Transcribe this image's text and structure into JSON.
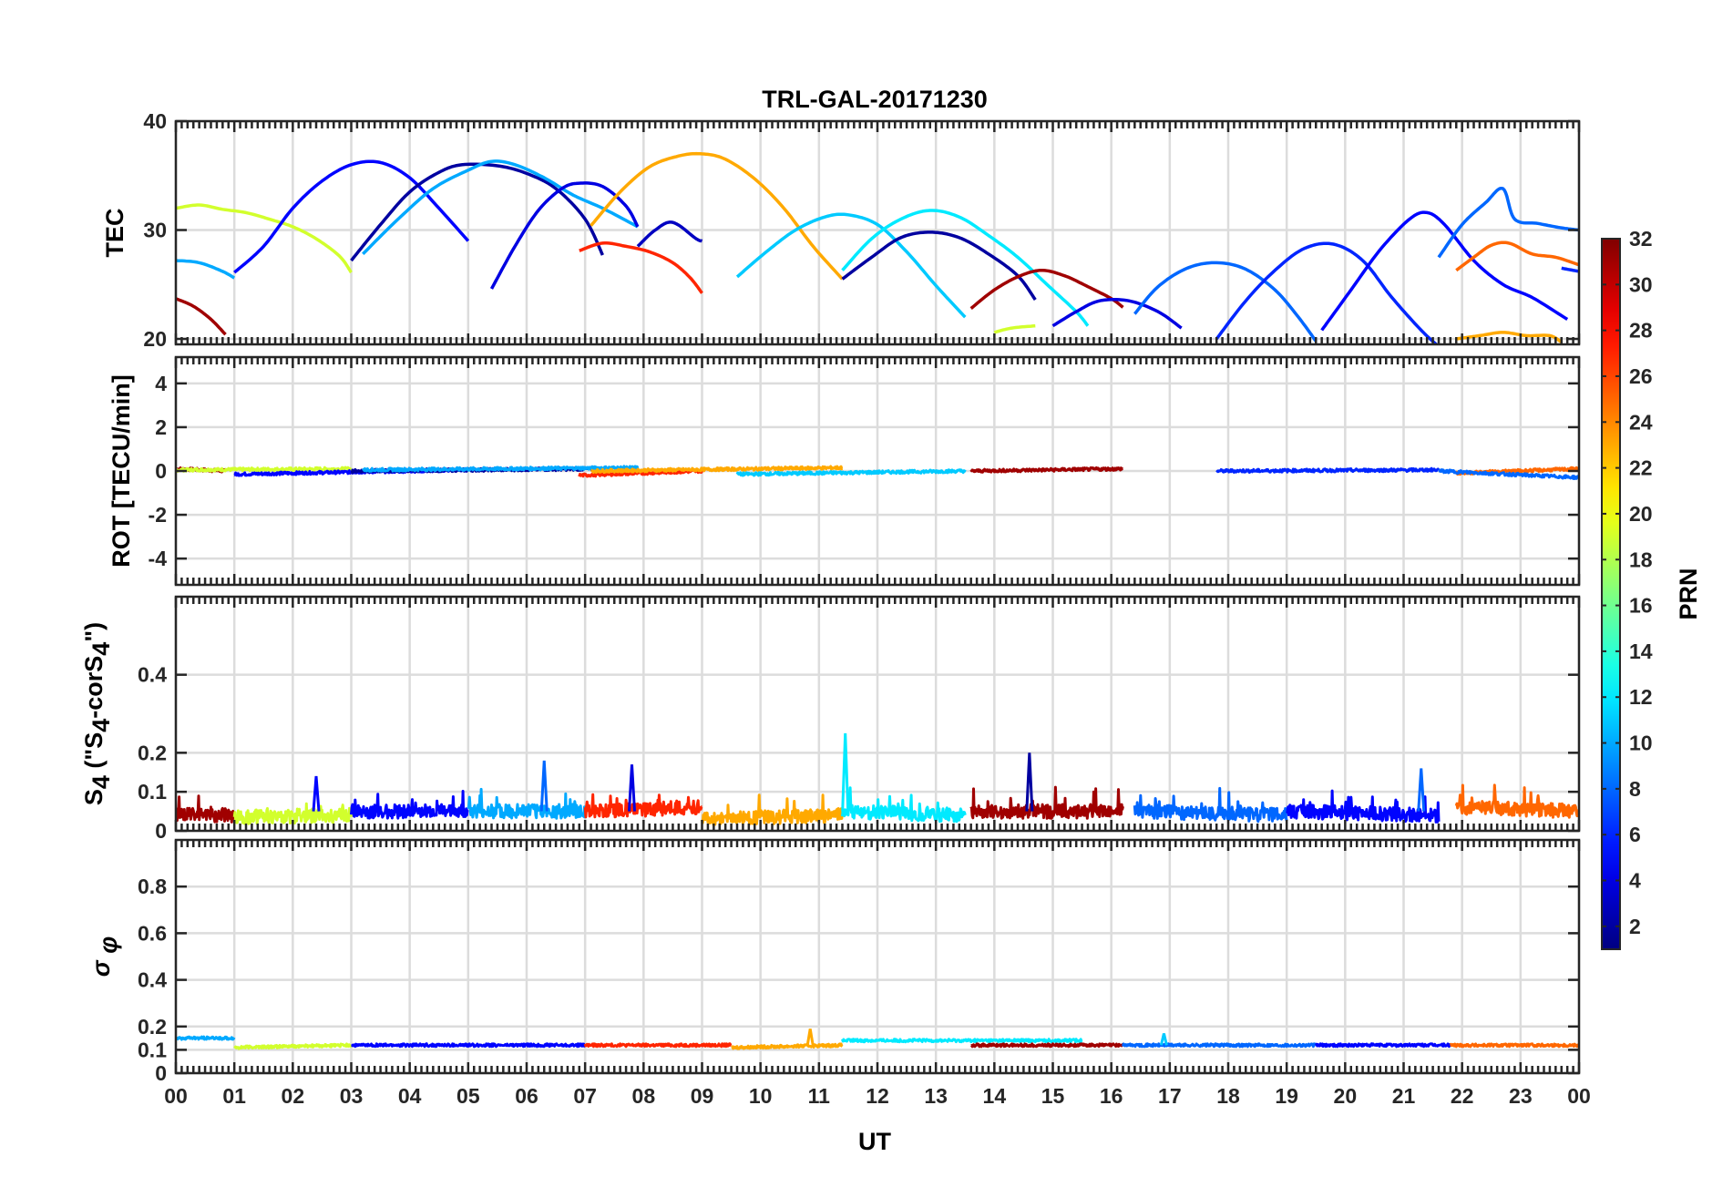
{
  "chart_data": {
    "type": "line",
    "title": "TRL-GAL-20171230",
    "xlabel": "UT",
    "x_ticks": [
      "00",
      "01",
      "02",
      "03",
      "04",
      "05",
      "06",
      "07",
      "08",
      "09",
      "10",
      "11",
      "12",
      "13",
      "14",
      "15",
      "16",
      "17",
      "18",
      "19",
      "20",
      "21",
      "22",
      "23",
      "00"
    ],
    "xlim": [
      0,
      24
    ],
    "grid": true,
    "colorbar": {
      "label": "PRN",
      "range": [
        1,
        32
      ],
      "ticks": [
        "2",
        "4",
        "6",
        "8",
        "10",
        "12",
        "14",
        "16",
        "18",
        "20",
        "22",
        "24",
        "26",
        "28",
        "30",
        "32"
      ],
      "colormap": "jet"
    },
    "panels": [
      {
        "ylabel": "TEC",
        "ylim": [
          19.5,
          40
        ],
        "yticks": [
          20,
          30,
          40
        ],
        "series": [
          {
            "prn": 31,
            "x": [
              0,
              0.3,
              0.6,
              0.85
            ],
            "y": [
              23.7,
              23.0,
              21.8,
              20.4
            ]
          },
          {
            "prn": 10,
            "x": [
              0,
              0.4,
              0.8,
              1.0
            ],
            "y": [
              27.2,
              27.0,
              26.2,
              25.6
            ]
          },
          {
            "prn": 19,
            "x": [
              0,
              0.4,
              0.8,
              1.2,
              1.6,
              2.0,
              2.4,
              2.8,
              3.0
            ],
            "y": [
              32.0,
              32.3,
              31.9,
              31.6,
              31.0,
              30.3,
              29.2,
              27.6,
              26.1
            ]
          },
          {
            "prn": 5,
            "x": [
              1.0,
              1.5,
              2.0,
              2.5,
              3.0,
              3.5,
              4.0,
              4.5,
              5.0
            ],
            "y": [
              26.1,
              28.5,
              32.0,
              34.5,
              36.0,
              36.2,
              34.8,
              32.0,
              29.0
            ]
          },
          {
            "prn": 2,
            "x": [
              3.0,
              3.5,
              4.0,
              4.5,
              4.9,
              5.5,
              6.0,
              6.5,
              7.0,
              7.3
            ],
            "y": [
              27.2,
              30.5,
              33.5,
              35.3,
              36.0,
              35.9,
              35.2,
              33.8,
              31.0,
              27.7
            ]
          },
          {
            "prn": 10,
            "x": [
              3.2,
              3.8,
              4.4,
              5.0,
              5.4,
              5.8,
              6.3,
              6.8,
              7.3,
              7.9
            ],
            "y": [
              27.8,
              31.0,
              33.8,
              35.5,
              36.3,
              36.0,
              34.8,
              33.2,
              32.0,
              30.3
            ]
          },
          {
            "prn": 4,
            "x": [
              5.4,
              5.8,
              6.2,
              6.6,
              6.9,
              7.3,
              7.7,
              7.9
            ],
            "y": [
              24.6,
              28.5,
              31.8,
              33.8,
              34.3,
              34.0,
              32.2,
              30.3
            ]
          },
          {
            "prn": 27,
            "x": [
              6.9,
              7.3,
              7.7,
              8.1,
              8.5,
              8.8,
              9.0
            ],
            "y": [
              28.1,
              28.8,
              28.5,
              28.0,
              27.0,
              25.6,
              24.2
            ]
          },
          {
            "prn": 23,
            "x": [
              7.1,
              7.6,
              8.1,
              8.6,
              9.0,
              9.4,
              9.9,
              10.4,
              10.9,
              11.4
            ],
            "y": [
              30.4,
              33.5,
              35.8,
              36.8,
              37.0,
              36.5,
              34.7,
              32.0,
              28.5,
              25.5
            ]
          },
          {
            "prn": 3,
            "x": [
              7.9,
              8.2,
              8.5,
              8.9,
              9.0
            ],
            "y": [
              28.5,
              30.0,
              30.7,
              29.2,
              29.0
            ]
          },
          {
            "prn": 11,
            "x": [
              9.6,
              10.1,
              10.6,
              11.1,
              11.5,
              12.0,
              12.5,
              13.0,
              13.5
            ],
            "y": [
              25.7,
              28.0,
              30.0,
              31.2,
              31.4,
              30.5,
              28.0,
              24.9,
              22.0
            ]
          },
          {
            "prn": 12,
            "x": [
              11.4,
              11.9,
              12.4,
              12.9,
              13.4,
              13.9,
              14.4,
              14.9,
              15.4,
              15.6
            ],
            "y": [
              26.3,
              29.2,
              31.0,
              31.8,
              31.2,
              29.5,
              27.5,
              25.0,
              22.5,
              21.2
            ]
          },
          {
            "prn": 2,
            "x": [
              11.4,
              11.9,
              12.4,
              12.9,
              13.4,
              13.9,
              14.4,
              14.7
            ],
            "y": [
              25.5,
              27.5,
              29.3,
              29.8,
              29.3,
              27.8,
              25.8,
              23.6
            ]
          },
          {
            "prn": 31,
            "x": [
              13.6,
              14.0,
              14.4,
              14.8,
              15.2,
              15.6,
              16.0,
              16.2
            ],
            "y": [
              22.8,
              24.5,
              25.7,
              26.3,
              25.8,
              24.8,
              23.7,
              22.9
            ]
          },
          {
            "prn": 19,
            "x": [
              14.0,
              14.3,
              14.7
            ],
            "y": [
              20.6,
              21.0,
              21.2
            ]
          },
          {
            "prn": 4,
            "x": [
              15.0,
              15.4,
              15.8,
              16.3,
              16.8,
              17.2
            ],
            "y": [
              21.2,
              22.5,
              23.5,
              23.5,
              22.5,
              21.0
            ]
          },
          {
            "prn": 8,
            "x": [
              16.4,
              16.8,
              17.3,
              17.8,
              18.3,
              18.8,
              19.2,
              19.5
            ],
            "y": [
              22.3,
              24.8,
              26.5,
              27.0,
              26.4,
              24.5,
              22.0,
              19.8
            ]
          },
          {
            "prn": 6,
            "x": [
              17.8,
              18.3,
              18.8,
              19.3,
              19.8,
              20.3,
              20.8,
              21.3,
              21.6
            ],
            "y": [
              20.0,
              23.5,
              26.3,
              28.3,
              28.7,
              27.2,
              23.8,
              20.8,
              19.3
            ]
          },
          {
            "prn": 5,
            "x": [
              19.6,
              20.1,
              20.6,
              21.1,
              21.4,
              21.7,
              22.2,
              22.7,
              23.2,
              23.8
            ],
            "y": [
              20.8,
              24.5,
              28.2,
              31.0,
              31.6,
              30.5,
              27.2,
              25.0,
              23.8,
              21.8
            ]
          },
          {
            "prn": 8,
            "x": [
              21.6,
              22.0,
              22.4,
              22.7,
              22.9,
              23.3,
              23.7,
              24.0
            ],
            "y": [
              27.5,
              30.5,
              32.5,
              33.8,
              31.0,
              30.6,
              30.2,
              30.0
            ]
          },
          {
            "prn": 25,
            "x": [
              21.9,
              22.2,
              22.5,
              22.8,
              23.2,
              23.6,
              24.0
            ],
            "y": [
              26.3,
              27.5,
              28.6,
              28.8,
              27.8,
              27.5,
              26.8
            ]
          },
          {
            "prn": 23,
            "x": [
              21.9,
              22.3,
              22.7,
              23.1,
              23.5,
              23.7
            ],
            "y": [
              20.0,
              20.3,
              20.6,
              20.3,
              20.3,
              19.7
            ]
          },
          {
            "prn": 6,
            "x": [
              23.7,
              24.0
            ],
            "y": [
              26.5,
              26.2
            ]
          }
        ]
      },
      {
        "ylabel": "ROT [TECU/min]",
        "ylim": [
          -5.2,
          5.2
        ],
        "yticks": [
          -4,
          -2,
          0,
          2,
          4
        ],
        "series": [
          {
            "prn": 31,
            "x": [
              0,
              0.85
            ],
            "y": [
              0.1,
              0.0
            ]
          },
          {
            "prn": 19,
            "x": [
              0,
              3.0
            ],
            "y": [
              0.05,
              0.1
            ]
          },
          {
            "prn": 5,
            "x": [
              1.0,
              5.0
            ],
            "y": [
              -0.15,
              0.05
            ]
          },
          {
            "prn": 2,
            "x": [
              3.0,
              7.3
            ],
            "y": [
              0.0,
              0.1
            ]
          },
          {
            "prn": 10,
            "x": [
              3.2,
              7.9
            ],
            "y": [
              0.05,
              0.15
            ]
          },
          {
            "prn": 27,
            "x": [
              6.9,
              9.0
            ],
            "y": [
              -0.2,
              0.0
            ]
          },
          {
            "prn": 23,
            "x": [
              7.1,
              11.4
            ],
            "y": [
              0.0,
              0.15
            ]
          },
          {
            "prn": 11,
            "x": [
              9.6,
              13.5
            ],
            "y": [
              -0.15,
              0.0
            ]
          },
          {
            "prn": 31,
            "x": [
              13.6,
              16.2
            ],
            "y": [
              0.0,
              0.1
            ]
          },
          {
            "prn": 6,
            "x": [
              17.8,
              21.6
            ],
            "y": [
              0.0,
              0.05
            ]
          },
          {
            "prn": 25,
            "x": [
              21.9,
              24.0
            ],
            "y": [
              -0.1,
              0.1
            ]
          },
          {
            "prn": 8,
            "x": [
              21.6,
              24.0
            ],
            "y": [
              0.0,
              -0.3
            ]
          }
        ]
      },
      {
        "ylabel": "S4 (\"S4-corS4\")",
        "ylim": [
          0,
          0.6
        ],
        "yticks": [
          0,
          0.1,
          0.2,
          0.4
        ],
        "series": [
          {
            "prn": 31,
            "x": [
              0,
              1.0
            ],
            "y": [
              0.04,
              0.04
            ]
          },
          {
            "prn": 19,
            "x": [
              1.0,
              3.0
            ],
            "y": [
              0.035,
              0.04
            ]
          },
          {
            "prn": 5,
            "x": [
              3.0,
              5.0
            ],
            "y": [
              0.05,
              0.05
            ]
          },
          {
            "prn": 10,
            "x": [
              5.0,
              7.0
            ],
            "y": [
              0.05,
              0.05
            ]
          },
          {
            "prn": 27,
            "x": [
              7.0,
              9.0
            ],
            "y": [
              0.05,
              0.06
            ]
          },
          {
            "prn": 23,
            "x": [
              9.0,
              11.4
            ],
            "y": [
              0.03,
              0.04
            ]
          },
          {
            "prn": 12,
            "x": [
              11.4,
              13.5
            ],
            "y": [
              0.05,
              0.04
            ]
          },
          {
            "prn": 31,
            "x": [
              13.6,
              16.2
            ],
            "y": [
              0.05,
              0.05
            ]
          },
          {
            "prn": 8,
            "x": [
              16.4,
              19.0
            ],
            "y": [
              0.05,
              0.04
            ]
          },
          {
            "prn": 5,
            "x": [
              19.0,
              21.6
            ],
            "y": [
              0.05,
              0.04
            ]
          },
          {
            "prn": 25,
            "x": [
              21.9,
              24.0
            ],
            "y": [
              0.06,
              0.05
            ]
          }
        ],
        "peaks": [
          {
            "prn": 5,
            "x": 2.4,
            "y": 0.14
          },
          {
            "prn": 8,
            "x": 6.3,
            "y": 0.18
          },
          {
            "prn": 4,
            "x": 7.8,
            "y": 0.17
          },
          {
            "prn": 12,
            "x": 11.45,
            "y": 0.25
          },
          {
            "prn": 2,
            "x": 14.6,
            "y": 0.2
          },
          {
            "prn": 8,
            "x": 21.3,
            "y": 0.16
          }
        ]
      },
      {
        "ylabel": "σφ",
        "ylim": [
          0,
          1.0
        ],
        "yticks": [
          0,
          0.1,
          0.2,
          0.4,
          0.6,
          0.8
        ],
        "series": [
          {
            "prn": 10,
            "x": [
              0,
              1.0
            ],
            "y": [
              0.15,
              0.15
            ]
          },
          {
            "prn": 19,
            "x": [
              1.0,
              3.0
            ],
            "y": [
              0.11,
              0.12
            ]
          },
          {
            "prn": 5,
            "x": [
              3.0,
              7.0
            ],
            "y": [
              0.12,
              0.12
            ]
          },
          {
            "prn": 27,
            "x": [
              7.0,
              9.5
            ],
            "y": [
              0.12,
              0.12
            ]
          },
          {
            "prn": 23,
            "x": [
              9.5,
              11.4
            ],
            "y": [
              0.11,
              0.12
            ]
          },
          {
            "prn": 12,
            "x": [
              11.4,
              15.5
            ],
            "y": [
              0.14,
              0.14
            ]
          },
          {
            "prn": 31,
            "x": [
              13.6,
              16.2
            ],
            "y": [
              0.12,
              0.12
            ]
          },
          {
            "prn": 8,
            "x": [
              16.2,
              19.5
            ],
            "y": [
              0.12,
              0.12
            ]
          },
          {
            "prn": 5,
            "x": [
              19.5,
              21.8
            ],
            "y": [
              0.12,
              0.12
            ]
          },
          {
            "prn": 25,
            "x": [
              21.8,
              24.0
            ],
            "y": [
              0.12,
              0.12
            ]
          }
        ],
        "peaks": [
          {
            "prn": 23,
            "x": 10.85,
            "y": 0.19
          },
          {
            "prn": 11,
            "x": 16.9,
            "y": 0.17
          }
        ]
      }
    ]
  }
}
